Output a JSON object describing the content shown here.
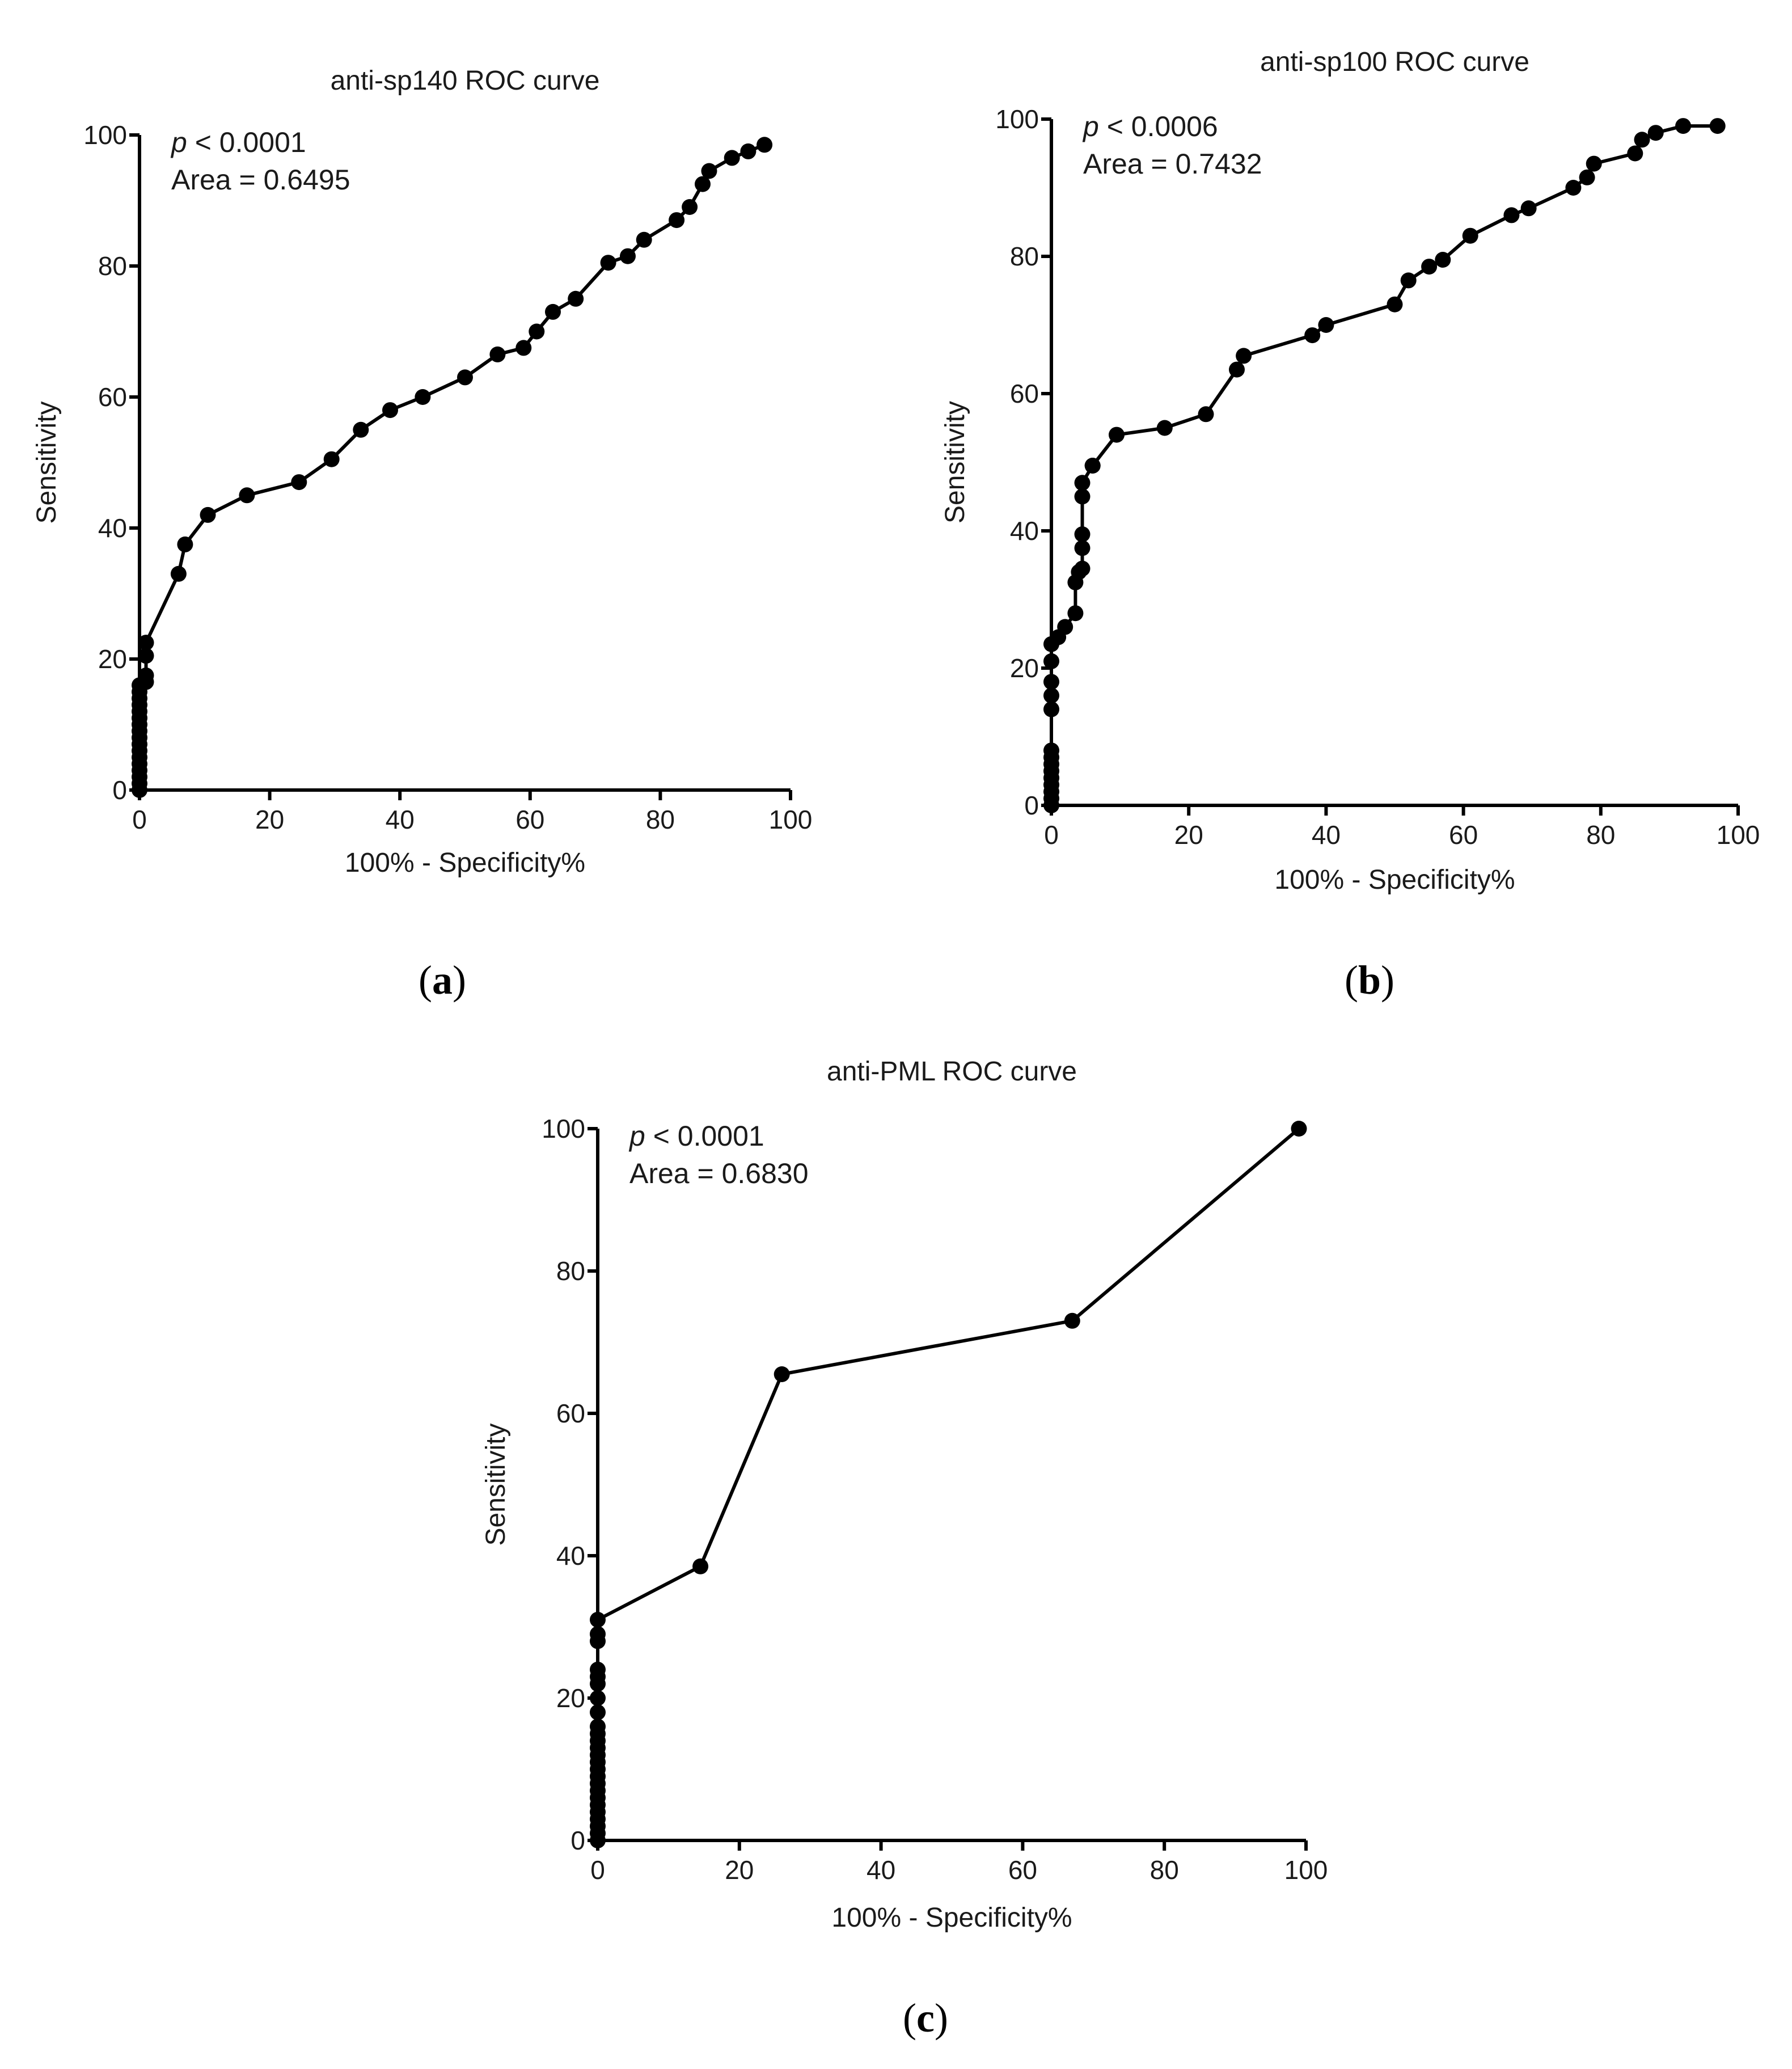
{
  "panel_labels": [
    "a",
    "b",
    "c"
  ],
  "chart_data": [
    {
      "type": "line",
      "title": "anti-sp140 ROC curve",
      "xlabel": "100% - Specificity%",
      "ylabel": "Sensitivity",
      "xlim": [
        0,
        100
      ],
      "ylim": [
        0,
        100
      ],
      "xticks": [
        0,
        20,
        40,
        60,
        80,
        100
      ],
      "yticks": [
        0,
        20,
        40,
        60,
        80,
        100
      ],
      "annotation_p_symbol": "p",
      "annotation_p_rest": " < 0.0001",
      "annotation_area": "Area = 0.6495",
      "series": [
        {
          "name": "anti-sp140",
          "x": [
            0,
            0,
            0,
            0,
            0,
            0,
            0,
            0,
            0,
            0,
            0,
            0,
            0,
            0,
            0,
            0,
            0,
            1,
            1,
            1,
            1,
            6,
            7,
            10.5,
            16.5,
            24.5,
            29.5,
            34,
            38.5,
            43.5,
            50,
            55,
            59,
            61,
            63.5,
            67,
            72,
            75,
            77.5,
            82.5,
            84.5,
            86.5,
            87.5,
            91,
            93.5,
            96
          ],
          "y": [
            0,
            1,
            2,
            3,
            4,
            5,
            6,
            7,
            8,
            9,
            10,
            11,
            12,
            13,
            14,
            15,
            16,
            16.5,
            17.5,
            20.5,
            22.5,
            33,
            37.5,
            42,
            45,
            47,
            50.5,
            55,
            58,
            60,
            63,
            66.5,
            67.5,
            70,
            73,
            75,
            80.5,
            81.5,
            84,
            87,
            89,
            92.5,
            94.5,
            96.5,
            97.5,
            98.5
          ]
        }
      ]
    },
    {
      "type": "line",
      "title": "anti-sp100 ROC curve",
      "xlabel": "100% - Specificity%",
      "ylabel": "Sensitivity",
      "xlim": [
        0,
        100
      ],
      "ylim": [
        0,
        100
      ],
      "xticks": [
        0,
        20,
        40,
        60,
        80,
        100
      ],
      "yticks": [
        0,
        20,
        40,
        60,
        80,
        100
      ],
      "annotation_p_symbol": "p",
      "annotation_p_rest": " < 0.0006",
      "annotation_area": "Area = 0.7432",
      "series": [
        {
          "name": "anti-sp100",
          "x": [
            0,
            0,
            0,
            0,
            0,
            0,
            0,
            0,
            0,
            0,
            0,
            0,
            0,
            0,
            1,
            2,
            3.5,
            3.5,
            4,
            4.5,
            4.5,
            4.5,
            4.5,
            4.5,
            6,
            6,
            9.5,
            16.5,
            22.5,
            27,
            28,
            38,
            40,
            50,
            52,
            55,
            57,
            61,
            67,
            69.5,
            76,
            78,
            79,
            85,
            86,
            88,
            92,
            97
          ],
          "y": [
            0,
            1,
            2,
            3,
            4,
            5,
            6,
            7,
            8,
            14,
            16,
            18,
            21,
            23.5,
            24.5,
            26,
            28,
            32.5,
            34,
            34.5,
            37.5,
            39.5,
            45,
            47,
            49.5,
            49.5,
            54,
            55,
            57,
            63.5,
            65.5,
            68.5,
            70,
            73,
            76.5,
            78.5,
            79.5,
            83,
            86,
            87,
            90,
            91.5,
            93.5,
            95,
            97,
            98,
            99,
            99
          ]
        }
      ]
    },
    {
      "type": "line",
      "title": "anti-PML ROC curve",
      "xlabel": "100% - Specificity%",
      "ylabel": "Sensitivity",
      "xlim": [
        0,
        100
      ],
      "ylim": [
        0,
        100
      ],
      "xticks": [
        0,
        20,
        40,
        60,
        80,
        100
      ],
      "yticks": [
        0,
        20,
        40,
        60,
        80,
        100
      ],
      "annotation_p_symbol": "p",
      "annotation_p_rest": " < 0.0001",
      "annotation_area": "Area = 0.6830",
      "series": [
        {
          "name": "anti-PML",
          "x": [
            0,
            0,
            0,
            0,
            0,
            0,
            0,
            0,
            0,
            0,
            0,
            0,
            0,
            0,
            0,
            0,
            0,
            0,
            0,
            0,
            0,
            0,
            0,
            0,
            0,
            14.5,
            26,
            67,
            99
          ],
          "y": [
            0,
            1,
            2,
            3,
            4,
            5,
            6,
            7,
            8,
            9,
            10,
            11,
            12,
            13,
            14,
            15,
            16,
            18,
            20,
            22,
            23,
            24,
            28,
            29,
            31,
            38.5,
            65.5,
            73,
            100
          ]
        }
      ]
    }
  ]
}
